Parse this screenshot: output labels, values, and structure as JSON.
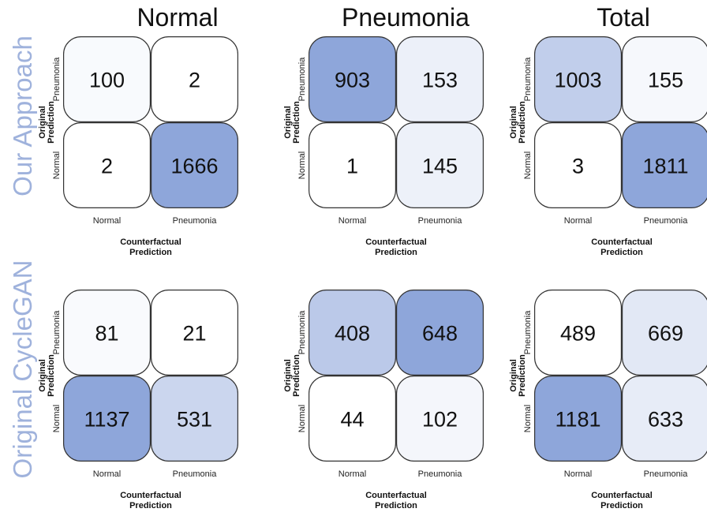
{
  "chart_data": {
    "type": "heatmap",
    "colors": {
      "max": "#8ea6da",
      "min": "#ffffff"
    },
    "column_titles": [
      "Normal",
      "Pneumonia",
      "Total"
    ],
    "row_titles": [
      "Our Approach",
      "Original CycleGAN"
    ],
    "ylabel": [
      "Original",
      "Prediction"
    ],
    "xlabel": [
      "Counterfactual",
      "Prediction"
    ],
    "y_tick_labels": [
      "Pneumonia",
      "Normal"
    ],
    "x_tick_labels": [
      "Normal",
      "Pneumonia"
    ],
    "matrices": [
      {
        "row": "Our Approach",
        "column": "Normal",
        "values": [
          [
            100,
            2
          ],
          [
            2,
            1666
          ]
        ]
      },
      {
        "row": "Our Approach",
        "column": "Pneumonia",
        "values": [
          [
            903,
            153
          ],
          [
            1,
            145
          ]
        ]
      },
      {
        "row": "Our Approach",
        "column": "Total",
        "values": [
          [
            1003,
            155
          ],
          [
            3,
            1811
          ]
        ]
      },
      {
        "row": "Original CycleGAN",
        "column": "Normal",
        "values": [
          [
            81,
            21
          ],
          [
            1137,
            531
          ]
        ]
      },
      {
        "row": "Original CycleGAN",
        "column": "Pneumonia",
        "values": [
          [
            408,
            648
          ],
          [
            44,
            102
          ]
        ]
      },
      {
        "row": "Original CycleGAN",
        "column": "Total",
        "values": [
          [
            489,
            669
          ],
          [
            1181,
            633
          ]
        ]
      }
    ]
  }
}
